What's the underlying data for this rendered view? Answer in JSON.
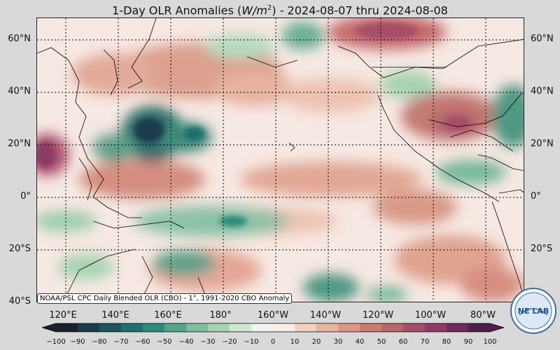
{
  "title": {
    "text_prefix": "1-Day OLR Anomalies (",
    "units_base": "W/m",
    "units_exp": "2",
    "text_suffix": ") - 2024-08-07 thru 2024-08-08"
  },
  "credit": "NOAA/PSL CPC Daily Blended OLR (CBO) - 1°, 1991-2020 CBO Anomaly",
  "latitude_labels": [
    "60°N",
    "40°N",
    "20°N",
    "0°",
    "20°S",
    "40°S"
  ],
  "longitude_labels": [
    "120°E",
    "140°E",
    "160°E",
    "180°",
    "160°W",
    "140°W",
    "120°W",
    "100°W",
    "80°W"
  ],
  "colorbar": {
    "ticks": [
      "−100",
      "−90",
      "−80",
      "−70",
      "−60",
      "−50",
      "−40",
      "−30",
      "−20",
      "−10",
      "0",
      "10",
      "20",
      "30",
      "40",
      "50",
      "60",
      "70",
      "80",
      "90",
      "100"
    ],
    "colors": [
      "#19222c",
      "#1c3b4d",
      "#1c5560",
      "#1f6f6c",
      "#2f8a79",
      "#55a389",
      "#7dbc9c",
      "#a6d3b2",
      "#cfe6d2",
      "#f1f4ef",
      "#fbeee6",
      "#f3d2c3",
      "#e9b4a1",
      "#dc9684",
      "#cc7a6e",
      "#b9636a",
      "#a54d69",
      "#8c3b66",
      "#6f2b5c",
      "#4e1d4b"
    ]
  },
  "logo": {
    "text": "NE LAB",
    "org": "NOAA PSL"
  }
}
